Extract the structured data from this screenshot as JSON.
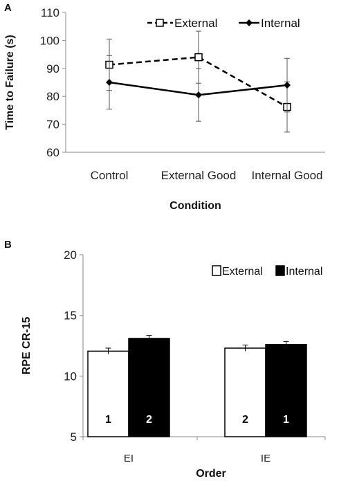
{
  "chart_data": [
    {
      "panel_label": "A",
      "type": "line",
      "ylabel": "Time to Failure (s)",
      "xlabel": "Condition",
      "ylim": [
        60,
        110
      ],
      "yticks": [
        "60",
        "70",
        "80",
        "90",
        "100",
        "110"
      ],
      "categories": [
        "Control",
        "External Good",
        "Internal Good"
      ],
      "series": [
        {
          "name": "External",
          "values": [
            91.3,
            94.0,
            76.2
          ],
          "errors": [
            9.2,
            9.3,
            9.0
          ],
          "line": "dashed",
          "marker": "open-square",
          "color": "#000000"
        },
        {
          "name": "Internal",
          "values": [
            85.0,
            80.5,
            84.0
          ],
          "errors": [
            9.6,
            9.4,
            9.6
          ],
          "line": "solid",
          "marker": "filled-diamond",
          "color": "#000000"
        }
      ],
      "legend_position": "top",
      "grid": false
    },
    {
      "panel_label": "B",
      "type": "bar",
      "ylabel": "RPE CR-15",
      "xlabel": "Order",
      "ylim": [
        5,
        20
      ],
      "yticks": [
        "5",
        "10",
        "15",
        "20"
      ],
      "categories": [
        "EI",
        "IE"
      ],
      "series": [
        {
          "name": "External",
          "values": [
            12.05,
            12.3
          ],
          "errors": [
            0.25,
            0.25
          ],
          "bar_labels": [
            "1",
            "2"
          ],
          "fill": "#ffffff"
        },
        {
          "name": "Internal",
          "values": [
            13.1,
            12.6
          ],
          "errors": [
            0.25,
            0.25
          ],
          "bar_labels": [
            "2",
            "1"
          ],
          "fill": "#000000"
        }
      ],
      "legend_position": "top-right",
      "grid": false
    }
  ]
}
